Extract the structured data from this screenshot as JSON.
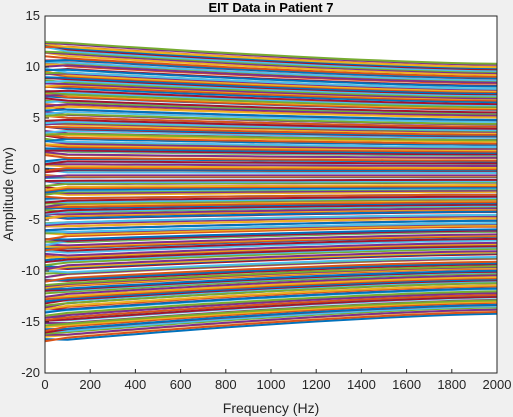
{
  "chart_data": {
    "type": "line",
    "title": "EIT Data in Patient 7",
    "xlabel": "Frequency (Hz)",
    "ylabel": "Amplitude (mv)",
    "xlim": [
      0,
      2000
    ],
    "ylim": [
      -20,
      15
    ],
    "xticks": [
      "0",
      "200",
      "400",
      "600",
      "800",
      "1000",
      "1200",
      "1400",
      "1600",
      "1800",
      "2000"
    ],
    "yticks": [
      "15",
      "10",
      "5",
      "0",
      "-5",
      "-10",
      "-15",
      "-20"
    ],
    "grid": false,
    "legend": "none",
    "series_count": 208,
    "x_start_hz": 0,
    "x_end_hz": 2000,
    "y_start_range": [
      -16.8,
      12.5
    ],
    "y_end_range": [
      -14.1,
      10.3
    ],
    "palette": [
      "#0072BD",
      "#D95319",
      "#EDB120",
      "#7E2F8E",
      "#77AC30",
      "#4DBEEE",
      "#A2142F"
    ],
    "background": "#f0f0f0",
    "plot_background": "#ffffff"
  }
}
